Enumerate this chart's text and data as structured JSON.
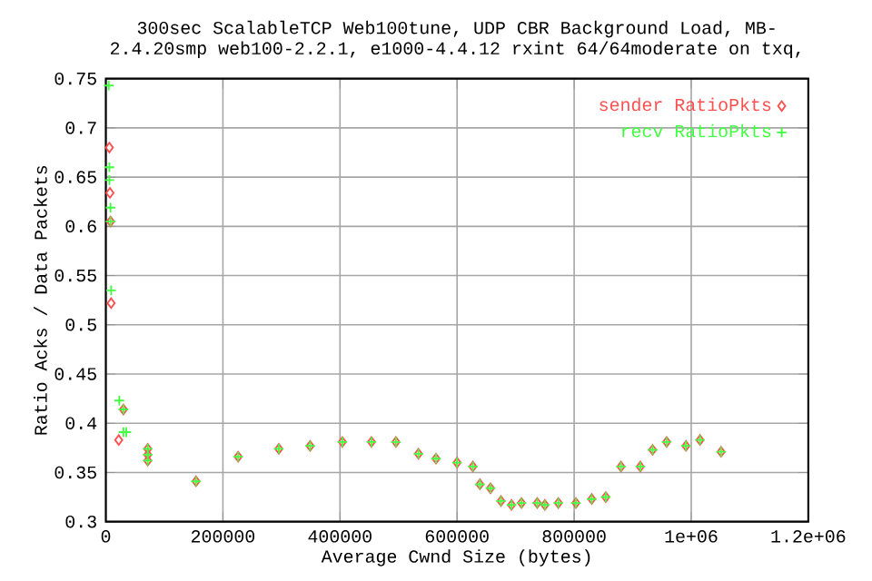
{
  "chart_data": {
    "type": "scatter",
    "title": "300sec ScalableTCP Web100tune, UDP CBR Background Load, MB-\n2.4.20smp web100-2.2.1, e1000-4.4.12 rxint 64/64moderate on txq,",
    "xlabel": "Average Cwnd Size (bytes)",
    "ylabel": "Ratio Acks / Data Packets",
    "xlim": [
      0,
      1200000
    ],
    "ylim": [
      0.3,
      0.75
    ],
    "xticks": [
      0,
      200000,
      400000,
      600000,
      800000,
      {
        "value": 1000000,
        "label": "1e+06"
      },
      {
        "value": 1200000,
        "label": "1.2e+06"
      }
    ],
    "yticks": [
      0.3,
      0.35,
      0.4,
      0.45,
      0.5,
      0.55,
      0.6,
      0.65,
      0.7,
      0.75
    ],
    "grid": true,
    "legend": "top right",
    "series": [
      {
        "name": "sender RatioPkts",
        "color": "#ff5050",
        "marker": "diamond",
        "x": [
          6000,
          7000,
          8000,
          9000,
          22000,
          30000,
          71600,
          71600,
          71600,
          154000,
          226000,
          295500,
          349000,
          404000,
          453700,
          495500,
          534000,
          564000,
          600000,
          627000,
          639000,
          657000,
          675000,
          693000,
          710000,
          737000,
          750000,
          773000,
          803000,
          830000,
          854000,
          880000,
          913000,
          934000,
          958000,
          991000,
          1015000,
          1051000
        ],
        "values": [
          0.68,
          0.634,
          0.605,
          0.522,
          0.383,
          0.414,
          0.374,
          0.368,
          0.362,
          0.341,
          0.366,
          0.374,
          0.377,
          0.381,
          0.381,
          0.381,
          0.369,
          0.364,
          0.36,
          0.356,
          0.338,
          0.334,
          0.321,
          0.317,
          0.319,
          0.319,
          0.317,
          0.319,
          0.319,
          0.323,
          0.325,
          0.356,
          0.356,
          0.373,
          0.381,
          0.377,
          0.383,
          0.371
        ]
      },
      {
        "name": "recv RatioPkts",
        "color": "#40ff40",
        "marker": "cross",
        "x": [
          5000,
          6000,
          6000,
          8000,
          8000,
          9000,
          23000,
          30000,
          30000,
          35000,
          71600,
          71600,
          71600,
          154000,
          226000,
          295500,
          349000,
          404000,
          453700,
          495500,
          534000,
          564000,
          600000,
          627000,
          639000,
          657000,
          675000,
          693000,
          710000,
          737000,
          750000,
          773000,
          803000,
          830000,
          854000,
          880000,
          913000,
          934000,
          958000,
          991000,
          1015000,
          1051000
        ],
        "values": [
          0.743,
          0.66,
          0.647,
          0.619,
          0.605,
          0.535,
          0.423,
          0.414,
          0.391,
          0.391,
          0.374,
          0.368,
          0.362,
          0.341,
          0.366,
          0.374,
          0.377,
          0.381,
          0.381,
          0.381,
          0.369,
          0.364,
          0.36,
          0.356,
          0.338,
          0.334,
          0.321,
          0.317,
          0.319,
          0.319,
          0.317,
          0.319,
          0.319,
          0.323,
          0.325,
          0.356,
          0.356,
          0.373,
          0.381,
          0.377,
          0.383,
          0.371
        ]
      }
    ]
  }
}
